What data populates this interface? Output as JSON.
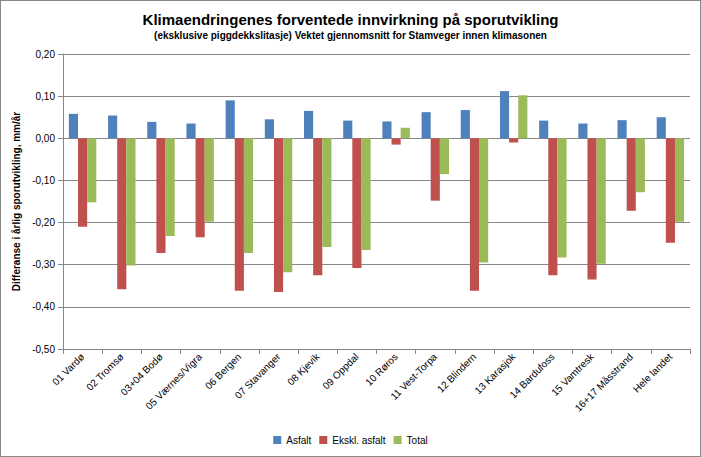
{
  "chart_data": {
    "type": "bar",
    "title": "Klimaendringenes forventede innvirkning på sporutvikling",
    "subtitle": "(eksklusive piggdekkslitasje) Vektet gjennomsnitt for Stamveger innen klimasonen",
    "y_label": "Differanse i årlig sporutvikling, mm/år",
    "categories": [
      "01 Vardø",
      "02 Tromsø",
      "03+04 Bodø",
      "05 Værnes/Vigra",
      "06 Bergen",
      "07 Stavanger",
      "08 Kjevik",
      "09 Oppdal",
      "10 Røros",
      "11 Vest-Torpa",
      "12 Blindern",
      "13 Karasjok",
      "14 Bardufoss",
      "15 Vamtresk",
      "16+17 Måsstrand",
      "Hele landet"
    ],
    "series": [
      {
        "name": "Asfalt",
        "color": "#4f81bd",
        "values": [
          0.058,
          0.054,
          0.039,
          0.035,
          0.09,
          0.045,
          0.065,
          0.042,
          0.04,
          0.062,
          0.067,
          0.112,
          0.042,
          0.035,
          0.043,
          0.05
        ]
      },
      {
        "name": "Ekskl. asfalt",
        "color": "#c0504d",
        "values": [
          -0.21,
          -0.358,
          -0.272,
          -0.235,
          -0.362,
          -0.365,
          -0.325,
          -0.308,
          -0.015,
          -0.148,
          -0.362,
          -0.01,
          -0.325,
          -0.335,
          -0.172,
          -0.248
        ]
      },
      {
        "name": "Total",
        "color": "#9bbb59",
        "values": [
          -0.152,
          -0.302,
          -0.232,
          -0.198,
          -0.272,
          -0.318,
          -0.258,
          -0.265,
          0.025,
          -0.085,
          -0.295,
          0.102,
          -0.283,
          -0.298,
          -0.128,
          -0.198
        ]
      }
    ],
    "ylim": [
      -0.5,
      0.2
    ],
    "yticks": [
      {
        "value": -0.5,
        "label": "-0,50"
      },
      {
        "value": -0.4,
        "label": "-0,40"
      },
      {
        "value": -0.3,
        "label": "-0,30"
      },
      {
        "value": -0.2,
        "label": "-0,20"
      },
      {
        "value": -0.1,
        "label": "-0,10"
      },
      {
        "value": 0,
        "label": "0,00"
      },
      {
        "value": 0.1,
        "label": "0,10"
      },
      {
        "value": 0.2,
        "label": "0,20"
      }
    ],
    "grid": true,
    "legend": "bottom"
  }
}
